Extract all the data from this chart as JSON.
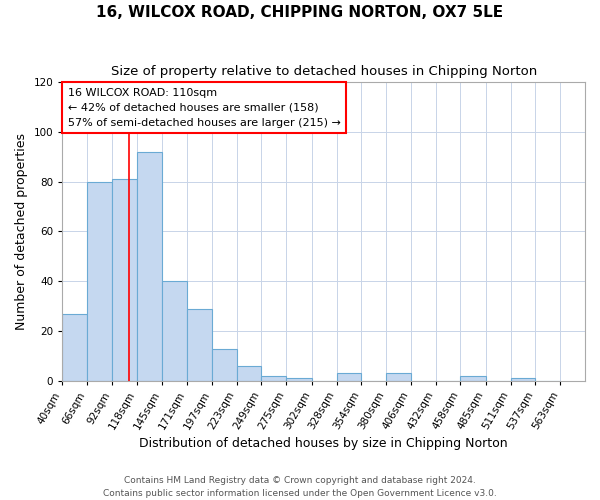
{
  "title": "16, WILCOX ROAD, CHIPPING NORTON, OX7 5LE",
  "subtitle": "Size of property relative to detached houses in Chipping Norton",
  "xlabel": "Distribution of detached houses by size in Chipping Norton",
  "ylabel": "Number of detached properties",
  "bar_values": [
    27,
    80,
    81,
    92,
    40,
    29,
    13,
    6,
    2,
    1,
    0,
    3,
    0,
    3,
    0,
    0,
    2,
    0,
    1,
    0
  ],
  "bin_labels": [
    "40sqm",
    "66sqm",
    "92sqm",
    "118sqm",
    "145sqm",
    "171sqm",
    "197sqm",
    "223sqm",
    "249sqm",
    "275sqm",
    "302sqm",
    "328sqm",
    "354sqm",
    "380sqm",
    "406sqm",
    "432sqm",
    "458sqm",
    "485sqm",
    "511sqm",
    "537sqm",
    "563sqm"
  ],
  "bin_edges": [
    40,
    66,
    92,
    118,
    145,
    171,
    197,
    223,
    249,
    275,
    302,
    328,
    354,
    380,
    406,
    432,
    458,
    485,
    511,
    537,
    563
  ],
  "bar_color": "#c5d8f0",
  "bar_edge_color": "#6aaad4",
  "vline_x": 110,
  "vline_color": "red",
  "ylim": [
    0,
    120
  ],
  "yticks": [
    0,
    20,
    40,
    60,
    80,
    100,
    120
  ],
  "annotation_title": "16 WILCOX ROAD: 110sqm",
  "annotation_line1": "← 42% of detached houses are smaller (158)",
  "annotation_line2": "57% of semi-detached houses are larger (215) →",
  "annotation_box_facecolor": "white",
  "annotation_box_edgecolor": "red",
  "footer1": "Contains HM Land Registry data © Crown copyright and database right 2024.",
  "footer2": "Contains public sector information licensed under the Open Government Licence v3.0.",
  "background_color": "white",
  "plot_background": "white",
  "grid_color": "#c8d4e8",
  "title_fontsize": 11,
  "subtitle_fontsize": 9.5,
  "axis_label_fontsize": 9,
  "tick_fontsize": 7.5,
  "annotation_fontsize": 8,
  "footer_fontsize": 6.5
}
